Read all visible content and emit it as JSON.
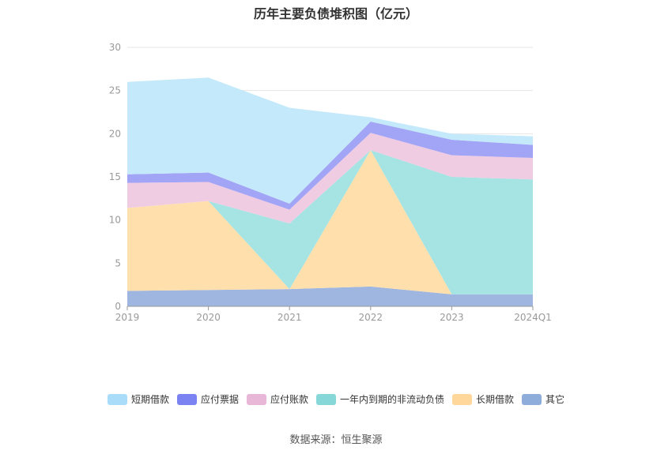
{
  "chart_data": {
    "type": "area",
    "stacked": true,
    "title": "历年主要负债堆积图（亿元）",
    "categories": [
      "2019",
      "2020",
      "2021",
      "2022",
      "2023",
      "2024Q1"
    ],
    "ylim": [
      0,
      30
    ],
    "yticks": [
      0,
      5,
      10,
      15,
      20,
      25,
      30
    ],
    "grid": true,
    "legend_position": "bottom",
    "series": [
      {
        "name": "其它",
        "color": "#9fb6e0",
        "values": [
          1.8,
          1.9,
          2.0,
          2.3,
          1.4,
          1.4
        ]
      },
      {
        "name": "长期借款",
        "color": "#ffe0ad",
        "values": [
          9.6,
          10.3,
          0.0,
          15.8,
          0.0,
          0.0
        ]
      },
      {
        "name": "一年内到期的非流动负债",
        "color": "#a6e3e3",
        "values": [
          0.0,
          0.0,
          7.6,
          0.0,
          13.6,
          13.3
        ]
      },
      {
        "name": "应付账款",
        "color": "#f0cce3",
        "values": [
          2.9,
          2.2,
          1.6,
          2.0,
          2.5,
          2.5
        ]
      },
      {
        "name": "应付票据",
        "color": "#a2a4f5",
        "values": [
          1.0,
          1.1,
          0.7,
          1.3,
          1.8,
          1.5
        ]
      },
      {
        "name": "短期借款",
        "color": "#c3e9fa",
        "values": [
          10.7,
          11.0,
          11.1,
          0.5,
          0.7,
          1.0
        ]
      }
    ]
  },
  "legend": [
    {
      "label": "短期借款",
      "color": "#a8dcf8"
    },
    {
      "label": "应付票据",
      "color": "#7b83f2"
    },
    {
      "label": "应付账款",
      "color": "#e8b6d6"
    },
    {
      "label": "一年内到期的非流动负债",
      "color": "#86d8d8"
    },
    {
      "label": "长期借款",
      "color": "#ffd79a"
    },
    {
      "label": "其它",
      "color": "#8eadda"
    }
  ],
  "source": "数据来源：恒生聚源"
}
